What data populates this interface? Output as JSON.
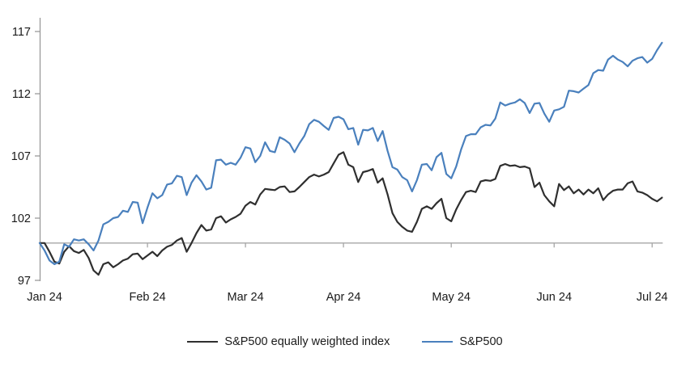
{
  "chart_data": {
    "type": "line",
    "title": "",
    "x_axis": {
      "labels": [
        "Jan 24",
        "Feb 24",
        "Mar 24",
        "Apr 24",
        "May 24",
        "Jun 24",
        "Jul 24"
      ],
      "label_point_index": [
        1,
        22,
        42,
        62,
        84,
        105,
        125
      ],
      "month_tick_point_index": [
        22,
        42,
        62,
        84,
        105,
        125
      ]
    },
    "y_axis": {
      "ticks": [
        97,
        102,
        107,
        112,
        117
      ],
      "min": 97,
      "max": 118.5
    },
    "baseline_value": 100,
    "grid": "baseline-only",
    "legend_position": "bottom-center",
    "colors": {
      "equal_weight_line": "#2f2f2f",
      "sp500_line": "#4a80bd",
      "axis": "#9a9a9a",
      "baseline": "#a6a6a6",
      "text": "#1a1a1a"
    },
    "series": [
      {
        "name": "S&P500 equally weighted index",
        "color": "#2f2f2f",
        "values": [
          100.0,
          100.0,
          99.3,
          98.5,
          98.35,
          99.3,
          99.75,
          99.35,
          99.2,
          99.45,
          98.8,
          97.8,
          97.45,
          98.3,
          98.45,
          98.05,
          98.3,
          98.6,
          98.75,
          99.1,
          99.15,
          98.7,
          99.0,
          99.3,
          98.95,
          99.4,
          99.7,
          99.85,
          100.2,
          100.4,
          99.3,
          100.0,
          100.8,
          101.45,
          101.0,
          101.1,
          102.0,
          102.15,
          101.65,
          101.9,
          102.1,
          102.35,
          103.0,
          103.3,
          103.1,
          103.9,
          104.35,
          104.3,
          104.25,
          104.5,
          104.55,
          104.1,
          104.15,
          104.5,
          104.9,
          105.3,
          105.5,
          105.35,
          105.5,
          105.7,
          106.4,
          107.1,
          107.3,
          106.3,
          106.1,
          104.9,
          105.7,
          105.8,
          105.95,
          104.85,
          105.2,
          103.9,
          102.4,
          101.7,
          101.3,
          101.0,
          100.9,
          101.7,
          102.75,
          102.95,
          102.75,
          103.2,
          103.55,
          102.0,
          101.75,
          102.7,
          103.45,
          104.1,
          104.2,
          104.1,
          104.95,
          105.05,
          105.0,
          105.15,
          106.2,
          106.35,
          106.2,
          106.25,
          106.1,
          106.15,
          106.0,
          104.5,
          104.85,
          103.85,
          103.35,
          102.95,
          104.75,
          104.25,
          104.55,
          104.0,
          104.3,
          103.9,
          104.3,
          104.0,
          104.4,
          103.45,
          103.9,
          104.2,
          104.3,
          104.3,
          104.8,
          104.95,
          104.15,
          104.05,
          103.85,
          103.55,
          103.35,
          103.65
        ]
      },
      {
        "name": "S&P500",
        "color": "#4a80bd",
        "values": [
          100.0,
          99.4,
          98.6,
          98.3,
          98.5,
          99.9,
          99.7,
          100.3,
          100.2,
          100.3,
          99.9,
          99.4,
          100.2,
          101.5,
          101.7,
          102.0,
          102.1,
          102.6,
          102.5,
          103.3,
          103.25,
          101.6,
          102.85,
          104.0,
          103.6,
          103.85,
          104.7,
          104.8,
          105.4,
          105.3,
          103.85,
          104.85,
          105.45,
          104.95,
          104.3,
          104.45,
          106.65,
          106.7,
          106.3,
          106.45,
          106.3,
          106.85,
          107.7,
          107.6,
          106.5,
          107.0,
          108.1,
          107.4,
          107.3,
          108.5,
          108.3,
          108.0,
          107.3,
          108.0,
          108.6,
          109.55,
          109.9,
          109.75,
          109.4,
          109.1,
          110.05,
          110.15,
          109.95,
          109.15,
          109.25,
          107.9,
          109.1,
          109.05,
          109.25,
          108.2,
          109.0,
          107.4,
          106.1,
          105.9,
          105.3,
          105.05,
          104.15,
          105.05,
          106.3,
          106.35,
          105.85,
          106.9,
          107.25,
          105.55,
          105.2,
          106.15,
          107.5,
          108.6,
          108.75,
          108.75,
          109.3,
          109.5,
          109.45,
          110.0,
          111.3,
          111.05,
          111.2,
          111.3,
          111.55,
          111.25,
          110.45,
          111.2,
          111.25,
          110.4,
          109.75,
          110.65,
          110.75,
          110.95,
          112.25,
          112.2,
          112.1,
          112.4,
          112.7,
          113.65,
          113.9,
          113.85,
          114.75,
          115.05,
          114.75,
          114.55,
          114.2,
          114.65,
          114.85,
          114.95,
          114.5,
          114.8,
          115.5,
          116.1
        ]
      }
    ],
    "legend": [
      {
        "label": "S&P500 equally weighted index",
        "color": "#2f2f2f"
      },
      {
        "label": "S&P500",
        "color": "#4a80bd"
      }
    ]
  }
}
